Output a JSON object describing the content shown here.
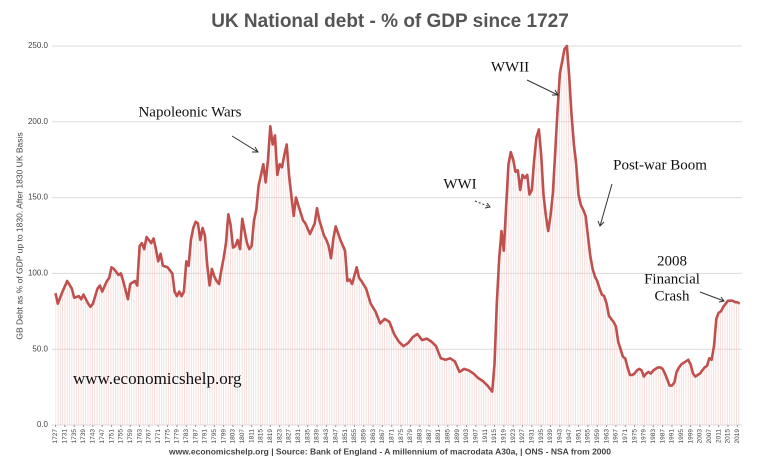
{
  "chart_data": {
    "type": "line",
    "title": "UK National debt - % of GDP since 1727",
    "y_label": "GB Debt as % of GDP up to 1830. After 1830 UK Basis",
    "watermark": "www.economicshelp.org",
    "footer": "www.economicshelp.org | Source: Bank of England - A millennium of macrodata A30a, | ONS - NSA from 2000",
    "annotations": [
      [
        "Napoleonic Wars"
      ],
      [
        "WWII"
      ],
      [
        "WWI"
      ],
      [
        "Post-war Boom"
      ],
      [
        "2008",
        "Financial",
        "Crash"
      ]
    ],
    "color": "#c0504d",
    "grid": true,
    "xlim": [
      1725.5,
      2021
    ],
    "ylim": [
      0,
      250
    ],
    "yticks": [
      {
        "value": 0,
        "label": "0.0"
      },
      {
        "value": 50,
        "label": "50.0"
      },
      {
        "value": 100,
        "label": "100.0"
      },
      {
        "value": 150,
        "label": "150.0"
      },
      {
        "value": 200,
        "label": "200.0"
      },
      {
        "value": 250,
        "label": "250.0"
      }
    ],
    "xticks": [
      1727,
      1731,
      1735,
      1739,
      1743,
      1747,
      1751,
      1755,
      1759,
      1763,
      1767,
      1771,
      1775,
      1779,
      1783,
      1787,
      1791,
      1795,
      1799,
      1803,
      1807,
      1811,
      1815,
      1819,
      1823,
      1827,
      1831,
      1835,
      1839,
      1843,
      1847,
      1851,
      1855,
      1859,
      1863,
      1867,
      1871,
      1875,
      1879,
      1883,
      1887,
      1891,
      1895,
      1899,
      1903,
      1907,
      1911,
      1915,
      1919,
      1923,
      1927,
      1931,
      1935,
      1939,
      1943,
      1947,
      1951,
      1955,
      1959,
      1963,
      1967,
      1971,
      1975,
      1979,
      1983,
      1987,
      1991,
      1995,
      1999,
      2003,
      2007,
      2011,
      2015,
      2019
    ],
    "x": [
      1727,
      1728,
      1730,
      1732,
      1734,
      1735,
      1737,
      1738,
      1739,
      1741,
      1742,
      1743,
      1745,
      1746,
      1747,
      1749,
      1750,
      1751,
      1752,
      1754,
      1755,
      1756,
      1758,
      1759,
      1761,
      1762,
      1763,
      1764,
      1765,
      1766,
      1767,
      1768,
      1769,
      1770,
      1771,
      1772,
      1773,
      1775,
      1777,
      1778,
      1779,
      1780,
      1781,
      1782,
      1783,
      1784,
      1785,
      1786,
      1787,
      1788,
      1789,
      1790,
      1791,
      1792,
      1793,
      1794,
      1795,
      1796,
      1797,
      1798,
      1799,
      1800,
      1801,
      1802,
      1803,
      1804,
      1805,
      1806,
      1807,
      1808,
      1809,
      1810,
      1811,
      1812,
      1813,
      1814,
      1815,
      1816,
      1817,
      1818,
      1819,
      1820,
      1821,
      1822,
      1823,
      1824,
      1825,
      1826,
      1827,
      1829,
      1830,
      1831,
      1833,
      1834,
      1836,
      1838,
      1839,
      1840,
      1842,
      1843,
      1844,
      1845,
      1846,
      1847,
      1849,
      1851,
      1852,
      1853,
      1854,
      1856,
      1857,
      1858,
      1860,
      1862,
      1864,
      1866,
      1868,
      1870,
      1872,
      1874,
      1876,
      1878,
      1880,
      1882,
      1884,
      1886,
      1888,
      1890,
      1892,
      1894,
      1896,
      1898,
      1900,
      1902,
      1904,
      1906,
      1908,
      1910,
      1912,
      1914,
      1915,
      1916,
      1917,
      1918,
      1919,
      1920,
      1921,
      1922,
      1923,
      1924,
      1925,
      1926,
      1927,
      1928,
      1929,
      1930,
      1931,
      1932,
      1933,
      1934,
      1935,
      1936,
      1937,
      1938,
      1939,
      1940,
      1941,
      1942,
      1943,
      1944,
      1945,
      1946,
      1947,
      1948,
      1949,
      1950,
      1951,
      1952,
      1953,
      1954,
      1955,
      1956,
      1957,
      1958,
      1959,
      1960,
      1961,
      1962,
      1963,
      1964,
      1965,
      1966,
      1967,
      1968,
      1969,
      1970,
      1971,
      1972,
      1973,
      1974,
      1975,
      1976,
      1977,
      1978,
      1979,
      1980,
      1981,
      1982,
      1983,
      1984,
      1985,
      1986,
      1987,
      1988,
      1989,
      1990,
      1991,
      1992,
      1993,
      1994,
      1995,
      1996,
      1997,
      1998,
      1999,
      2000,
      2001,
      2002,
      2003,
      2004,
      2005,
      2006,
      2007,
      2008,
      2009,
      2010,
      2011,
      2012,
      2013,
      2014,
      2015,
      2016,
      2017,
      2018,
      2019,
      2020
    ],
    "values": [
      87,
      80,
      88,
      95,
      90,
      84,
      85,
      83,
      86,
      80,
      78,
      80,
      90,
      92,
      88,
      95,
      97,
      104,
      103,
      99,
      100,
      95,
      83,
      93,
      95,
      92,
      118,
      120,
      116,
      124,
      122,
      120,
      123,
      116,
      108,
      113,
      105,
      104,
      100,
      88,
      85,
      88,
      85,
      88,
      108,
      105,
      122,
      130,
      134,
      133,
      122,
      130,
      125,
      105,
      92,
      103,
      98,
      95,
      93,
      102,
      110,
      120,
      139,
      132,
      117,
      118,
      122,
      116,
      136,
      128,
      120,
      116,
      118,
      135,
      142,
      158,
      165,
      172,
      160,
      175,
      197,
      185,
      191,
      165,
      172,
      170,
      178,
      185,
      165,
      138,
      150,
      145,
      135,
      133,
      126,
      133,
      143,
      135,
      125,
      122,
      118,
      110,
      123,
      131,
      122,
      115,
      95,
      96,
      93,
      104,
      97,
      95,
      90,
      80,
      75,
      67,
      70,
      68,
      60,
      55,
      52,
      54,
      58,
      60,
      56,
      57,
      55,
      52,
      44,
      43,
      44,
      42,
      35,
      37,
      36,
      34,
      31,
      29,
      26,
      22,
      40,
      80,
      110,
      128,
      115,
      145,
      172,
      180,
      175,
      167,
      168,
      155,
      165,
      163,
      165,
      152,
      155,
      175,
      190,
      195,
      178,
      152,
      138,
      128,
      138,
      153,
      180,
      207,
      232,
      240,
      248,
      250,
      230,
      205,
      185,
      172,
      152,
      145,
      142,
      138,
      125,
      112,
      103,
      98,
      95,
      90,
      86,
      85,
      80,
      72,
      70,
      68,
      65,
      55,
      50,
      45,
      44,
      38,
      33,
      33,
      34,
      36,
      37,
      36,
      32,
      34,
      35,
      34,
      36,
      37,
      38,
      38,
      37,
      34,
      30,
      26,
      26,
      28,
      35,
      38,
      40,
      41,
      42,
      43,
      40,
      34,
      32,
      33,
      34,
      36,
      38,
      39,
      44,
      43,
      52,
      70,
      74,
      75,
      78,
      80,
      82,
      82,
      82,
      81,
      81,
      80
    ]
  }
}
